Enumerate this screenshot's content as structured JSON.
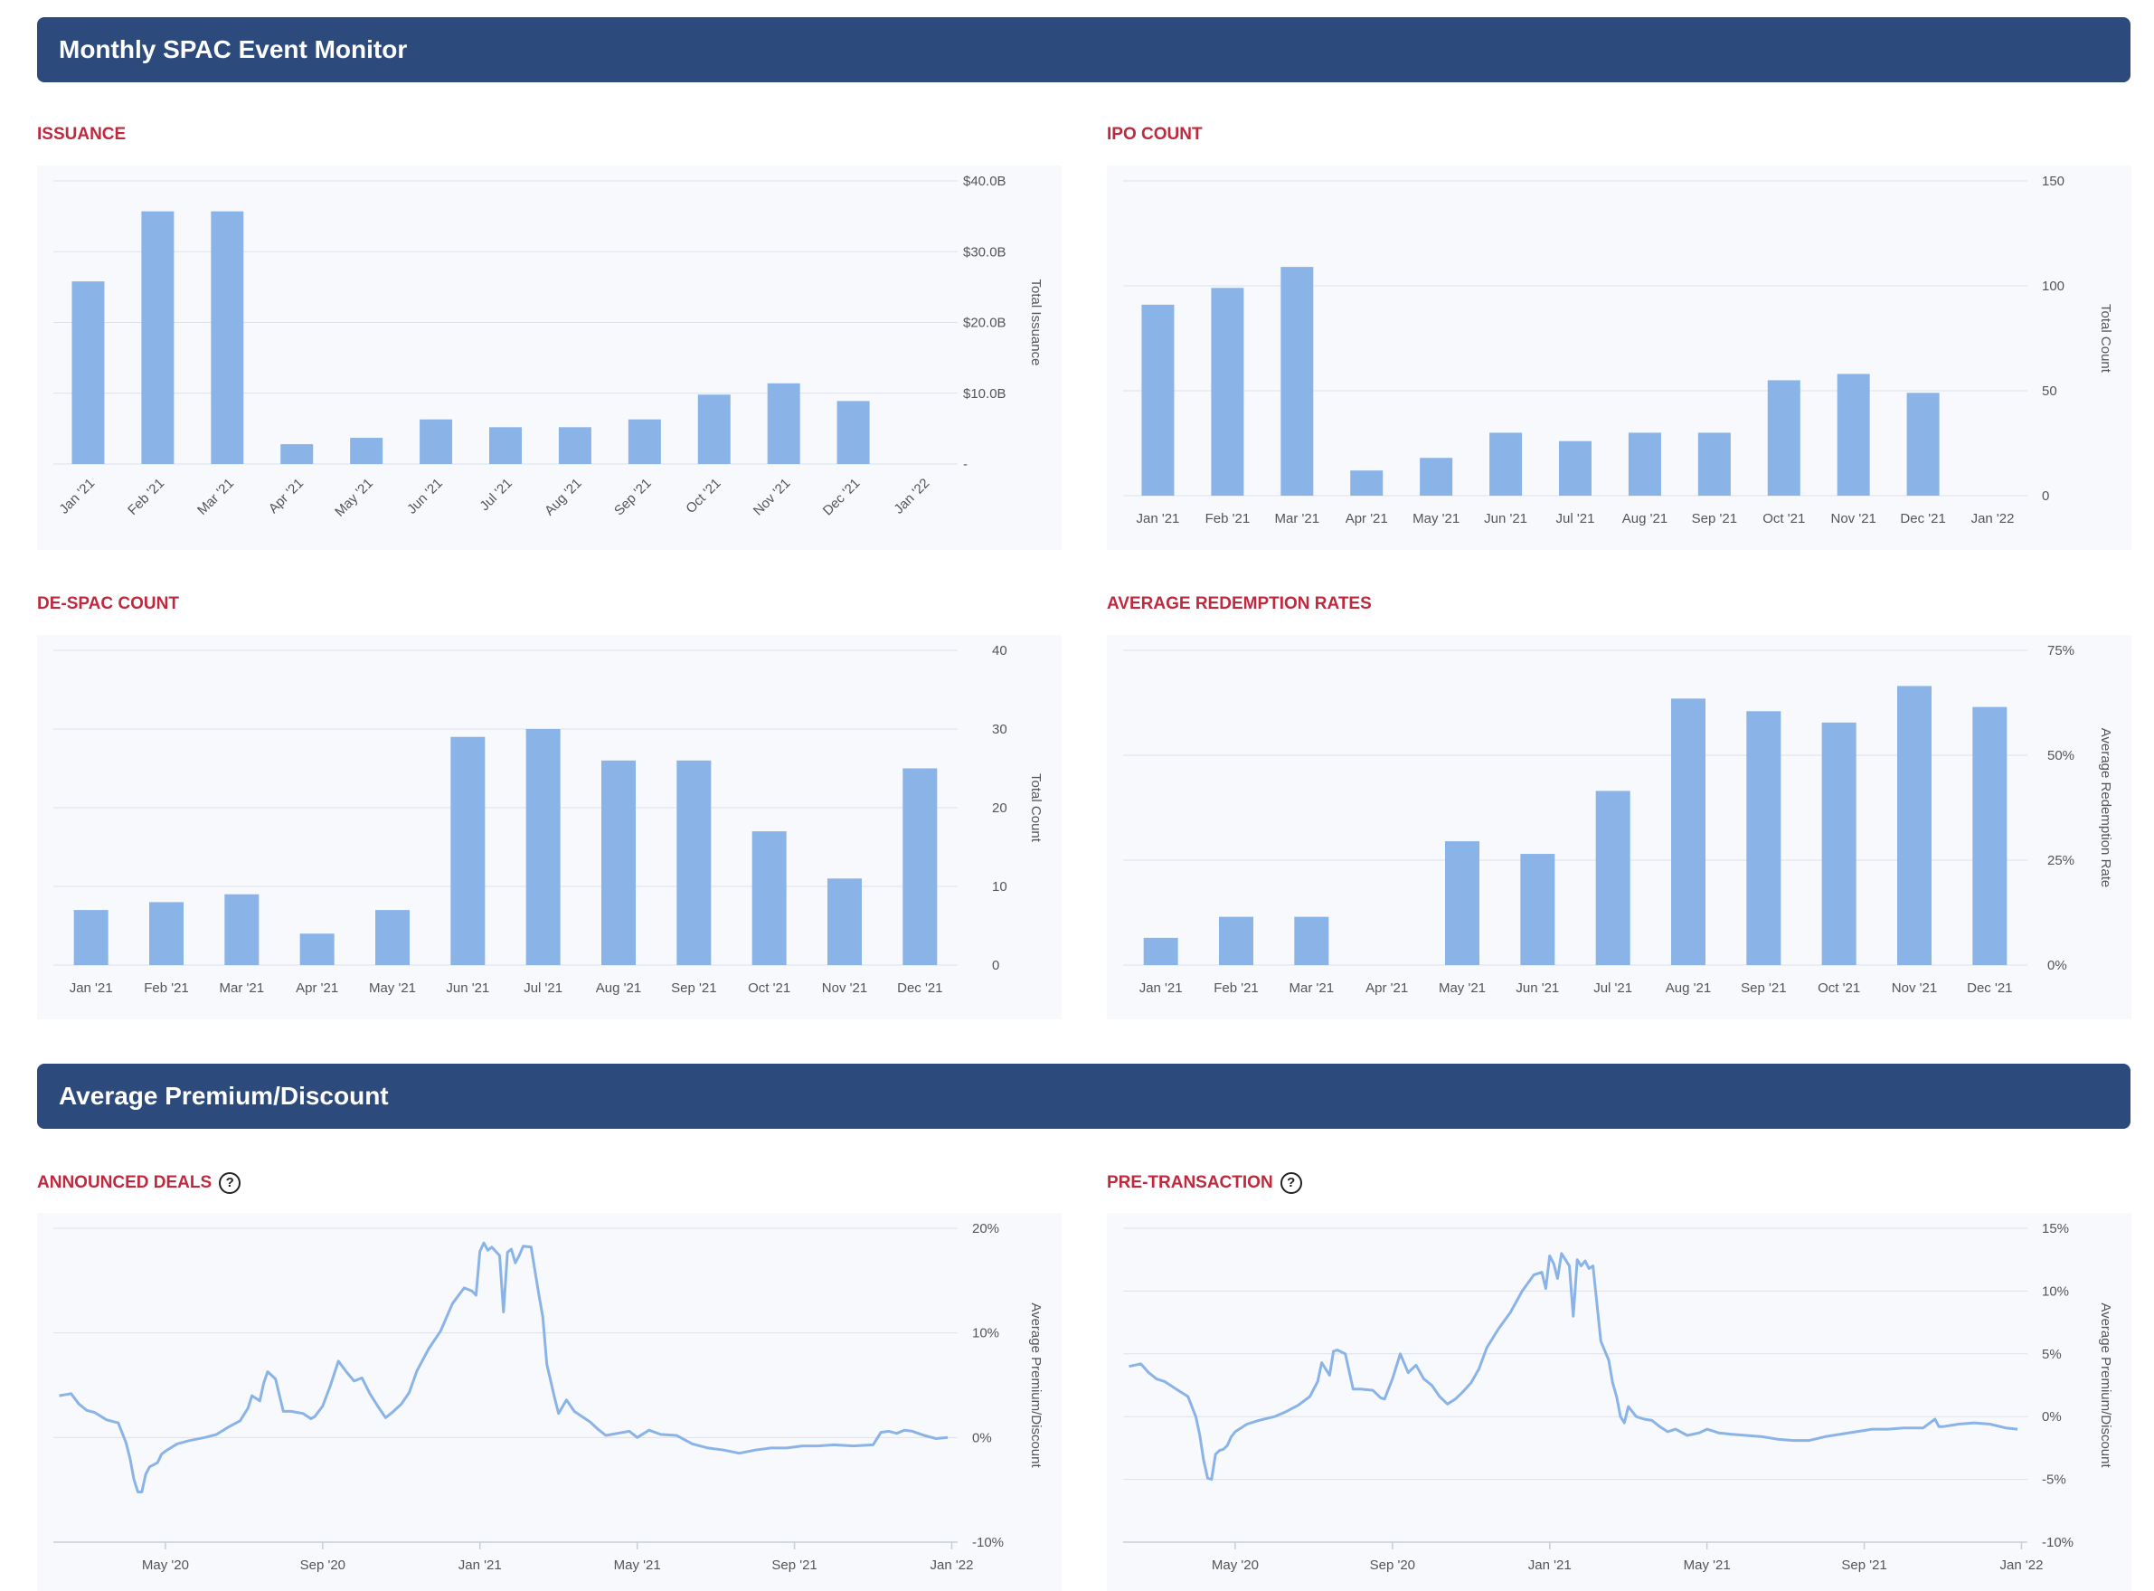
{
  "sections": {
    "monthly": "Monthly SPAC Event Monitor",
    "premium": "Average Premium/Discount"
  },
  "colors": {
    "bar": "#8ab4e8",
    "banner": "#2c4a7c",
    "title": "#c0283d",
    "panel": "#f8f9fc"
  },
  "icons": {
    "help": "question-circle-icon"
  },
  "chart_data": [
    {
      "id": "issuance",
      "type": "bar",
      "title": "ISSUANCE",
      "ylabel": "Total Issuance",
      "categories": [
        "Jan '21",
        "Feb '21",
        "Mar '21",
        "Apr '21",
        "May '21",
        "Jun '21",
        "Jul '21",
        "Aug '21",
        "Sep '21",
        "Oct '21",
        "Nov '21",
        "Dec '21",
        "Jan '22"
      ],
      "values": [
        25.8,
        35.7,
        35.7,
        2.8,
        3.7,
        6.3,
        5.2,
        5.2,
        6.3,
        9.8,
        11.4,
        8.9,
        null
      ],
      "ylim": [
        0,
        40
      ],
      "yticks": [
        0,
        10,
        20,
        30,
        40
      ],
      "ytick_labels": [
        "-",
        "$10.0B",
        "$20.0B",
        "$30.0B",
        "$40.0B"
      ],
      "xtick_rotation": true
    },
    {
      "id": "ipo",
      "type": "bar",
      "title": "IPO COUNT",
      "ylabel": "Total Count",
      "categories": [
        "Jan '21",
        "Feb '21",
        "Mar '21",
        "Apr '21",
        "May '21",
        "Jun '21",
        "Jul '21",
        "Aug '21",
        "Sep '21",
        "Oct '21",
        "Nov '21",
        "Dec '21",
        "Jan '22"
      ],
      "values": [
        91,
        99,
        109,
        12,
        18,
        30,
        26,
        30,
        30,
        55,
        58,
        49,
        null
      ],
      "ylim": [
        0,
        150
      ],
      "yticks": [
        0,
        50,
        100,
        150
      ],
      "ytick_labels": [
        "0",
        "50",
        "100",
        "150"
      ],
      "xtick_rotation": false
    },
    {
      "id": "despac",
      "type": "bar",
      "title": "DE-SPAC COUNT",
      "ylabel": "Total Count",
      "categories": [
        "Jan '21",
        "Feb '21",
        "Mar '21",
        "Apr '21",
        "May '21",
        "Jun '21",
        "Jul '21",
        "Aug '21",
        "Sep '21",
        "Oct '21",
        "Nov '21",
        "Dec '21"
      ],
      "values": [
        7,
        8,
        9,
        4,
        7,
        29,
        30,
        26,
        26,
        17,
        11,
        25
      ],
      "ylim": [
        0,
        40
      ],
      "yticks": [
        0,
        10,
        20,
        30,
        40
      ],
      "ytick_labels": [
        "0",
        "10",
        "20",
        "30",
        "40"
      ],
      "xtick_rotation": false
    },
    {
      "id": "redemption",
      "type": "bar",
      "title": "AVERAGE REDEMPTION RATES",
      "ylabel": "Average Redemption Rate",
      "categories": [
        "Jan '21",
        "Feb '21",
        "Mar '21",
        "Apr '21",
        "May '21",
        "Jun '21",
        "Jul '21",
        "Aug '21",
        "Sep '21",
        "Oct '21",
        "Nov '21",
        "Dec '21"
      ],
      "values": [
        6.5,
        11.5,
        11.5,
        null,
        29.5,
        26.5,
        41.5,
        63.5,
        60.5,
        57.8,
        66.5,
        61.5
      ],
      "ylim": [
        0,
        75
      ],
      "yticks": [
        0,
        25,
        50,
        75
      ],
      "ytick_labels": [
        "0%",
        "25%",
        "50%",
        "75%"
      ],
      "xtick_rotation": false
    },
    {
      "id": "announced",
      "type": "line",
      "title": "ANNOUNCED DEALS",
      "ylabel": "Average Premium/Discount",
      "xticks": [
        "May '20",
        "Sep '20",
        "Jan '21",
        "May '21",
        "Sep '21",
        "Jan '22"
      ],
      "xtick_months": [
        4,
        8,
        12,
        16,
        20,
        24
      ],
      "xlim": [
        1.15,
        24.15
      ],
      "ylim": [
        -10,
        20
      ],
      "yticks": [
        -10,
        0,
        10,
        20
      ],
      "ytick_labels": [
        "-10%",
        "0%",
        "10%",
        "20%"
      ],
      "x": [
        1.3,
        1.6,
        1.8,
        2.0,
        2.2,
        2.5,
        2.8,
        3.0,
        3.1,
        3.2,
        3.3,
        3.4,
        3.5,
        3.6,
        3.7,
        3.8,
        3.9,
        4.0,
        4.3,
        4.6,
        5.0,
        5.3,
        5.6,
        5.9,
        6.1,
        6.2,
        6.4,
        6.5,
        6.6,
        6.8,
        7.0,
        7.2,
        7.5,
        7.7,
        7.8,
        8.0,
        8.2,
        8.4,
        8.6,
        8.8,
        9.0,
        9.2,
        9.4,
        9.6,
        9.8,
        10.0,
        10.2,
        10.4,
        10.7,
        11.0,
        11.3,
        11.6,
        11.8,
        11.9,
        12.0,
        12.1,
        12.2,
        12.3,
        12.5,
        12.6,
        12.7,
        12.8,
        12.9,
        13.0,
        13.1,
        13.3,
        13.5,
        13.6,
        13.7,
        13.8,
        13.9,
        14.0,
        14.2,
        14.4,
        14.6,
        14.8,
        15.0,
        15.2,
        15.5,
        15.8,
        16.0,
        16.3,
        16.6,
        17.0,
        17.4,
        17.8,
        18.2,
        18.6,
        19.0,
        19.4,
        19.8,
        20.2,
        20.6,
        21.0,
        21.5,
        22.0,
        22.2,
        22.4,
        22.6,
        22.8,
        23.0,
        23.3,
        23.6,
        23.9
      ],
      "y": [
        4.0,
        4.2,
        3.2,
        2.6,
        2.4,
        1.7,
        1.4,
        -0.5,
        -2.0,
        -4.0,
        -5.2,
        -5.2,
        -3.5,
        -2.8,
        -2.6,
        -2.4,
        -1.6,
        -1.3,
        -0.6,
        -0.3,
        0.0,
        0.3,
        1.0,
        1.6,
        2.8,
        4.0,
        3.5,
        5.2,
        6.3,
        5.6,
        2.5,
        2.5,
        2.3,
        1.8,
        2.0,
        3.0,
        5.0,
        7.3,
        6.3,
        5.4,
        5.7,
        4.2,
        3.0,
        1.9,
        2.5,
        3.2,
        4.3,
        6.4,
        8.5,
        10.2,
        12.8,
        14.3,
        14.0,
        13.6,
        17.8,
        18.6,
        17.9,
        18.2,
        17.4,
        12.0,
        17.7,
        18.0,
        16.7,
        17.4,
        18.3,
        18.2,
        13.6,
        11.5,
        7.0,
        5.4,
        3.8,
        2.3,
        3.6,
        2.5,
        2.0,
        1.5,
        0.8,
        0.2,
        0.4,
        0.6,
        0.0,
        0.7,
        0.3,
        0.2,
        -0.6,
        -1.0,
        -1.2,
        -1.5,
        -1.2,
        -1.0,
        -1.0,
        -0.8,
        -0.8,
        -0.7,
        -0.8,
        -0.7,
        0.5,
        0.6,
        0.4,
        0.7,
        0.6,
        0.2,
        -0.1,
        0.0
      ]
    },
    {
      "id": "pretransaction",
      "type": "line",
      "title": "PRE-TRANSACTION",
      "ylabel": "Average Premium/Discount",
      "xticks": [
        "May '20",
        "Sep '20",
        "Jan '21",
        "May '21",
        "Sep '21",
        "Jan '22"
      ],
      "xtick_months": [
        4,
        8,
        12,
        16,
        20,
        24
      ],
      "xlim": [
        1.15,
        24.15
      ],
      "ylim": [
        -10,
        15
      ],
      "yticks": [
        -10,
        -5,
        0,
        5,
        10,
        15
      ],
      "ytick_labels": [
        "-10%",
        "-5%",
        "0%",
        "5%",
        "10%",
        "15%"
      ],
      "x": [
        1.3,
        1.6,
        1.8,
        2.0,
        2.2,
        2.5,
        2.8,
        3.0,
        3.1,
        3.2,
        3.3,
        3.4,
        3.5,
        3.6,
        3.7,
        3.8,
        3.9,
        4.0,
        4.3,
        4.6,
        5.0,
        5.3,
        5.6,
        5.9,
        6.1,
        6.2,
        6.4,
        6.5,
        6.6,
        6.8,
        7.0,
        7.2,
        7.5,
        7.7,
        7.8,
        8.0,
        8.2,
        8.4,
        8.6,
        8.8,
        9.0,
        9.2,
        9.4,
        9.6,
        9.8,
        10.0,
        10.2,
        10.4,
        10.7,
        11.0,
        11.3,
        11.6,
        11.8,
        11.9,
        12.0,
        12.1,
        12.2,
        12.3,
        12.5,
        12.6,
        12.7,
        12.8,
        12.9,
        13.0,
        13.1,
        13.3,
        13.5,
        13.6,
        13.7,
        13.8,
        13.9,
        14.0,
        14.2,
        14.4,
        14.6,
        14.8,
        15.0,
        15.2,
        15.5,
        15.8,
        16.0,
        16.3,
        16.6,
        17.0,
        17.4,
        17.8,
        18.2,
        18.6,
        19.0,
        19.4,
        19.8,
        20.2,
        20.6,
        21.0,
        21.5,
        21.8,
        21.9,
        22.0,
        22.4,
        22.8,
        23.2,
        23.6,
        23.9
      ],
      "y": [
        4.0,
        4.2,
        3.5,
        3.0,
        2.8,
        2.2,
        1.6,
        0.0,
        -1.5,
        -3.5,
        -4.9,
        -5.0,
        -3.0,
        -2.7,
        -2.6,
        -2.3,
        -1.6,
        -1.2,
        -0.6,
        -0.3,
        0.0,
        0.4,
        0.9,
        1.6,
        2.8,
        4.3,
        3.3,
        5.2,
        5.3,
        5.0,
        2.2,
        2.2,
        2.1,
        1.5,
        1.4,
        3.0,
        5.0,
        3.5,
        4.1,
        3.0,
        2.5,
        1.6,
        1.0,
        1.4,
        2.0,
        2.7,
        3.8,
        5.5,
        7.0,
        8.3,
        10.0,
        11.3,
        11.5,
        10.2,
        12.8,
        12.2,
        11.0,
        13.0,
        12.0,
        8.0,
        12.5,
        12.0,
        12.4,
        11.8,
        12.0,
        6.0,
        4.5,
        2.7,
        1.6,
        0.0,
        -0.5,
        0.8,
        0.0,
        -0.2,
        -0.3,
        -0.8,
        -1.2,
        -1.0,
        -1.5,
        -1.3,
        -1.0,
        -1.3,
        -1.4,
        -1.5,
        -1.6,
        -1.8,
        -1.9,
        -1.9,
        -1.6,
        -1.4,
        -1.2,
        -1.0,
        -1.0,
        -0.9,
        -0.9,
        -0.2,
        -0.8,
        -0.8,
        -0.6,
        -0.5,
        -0.6,
        -0.9,
        -1.0
      ]
    }
  ]
}
